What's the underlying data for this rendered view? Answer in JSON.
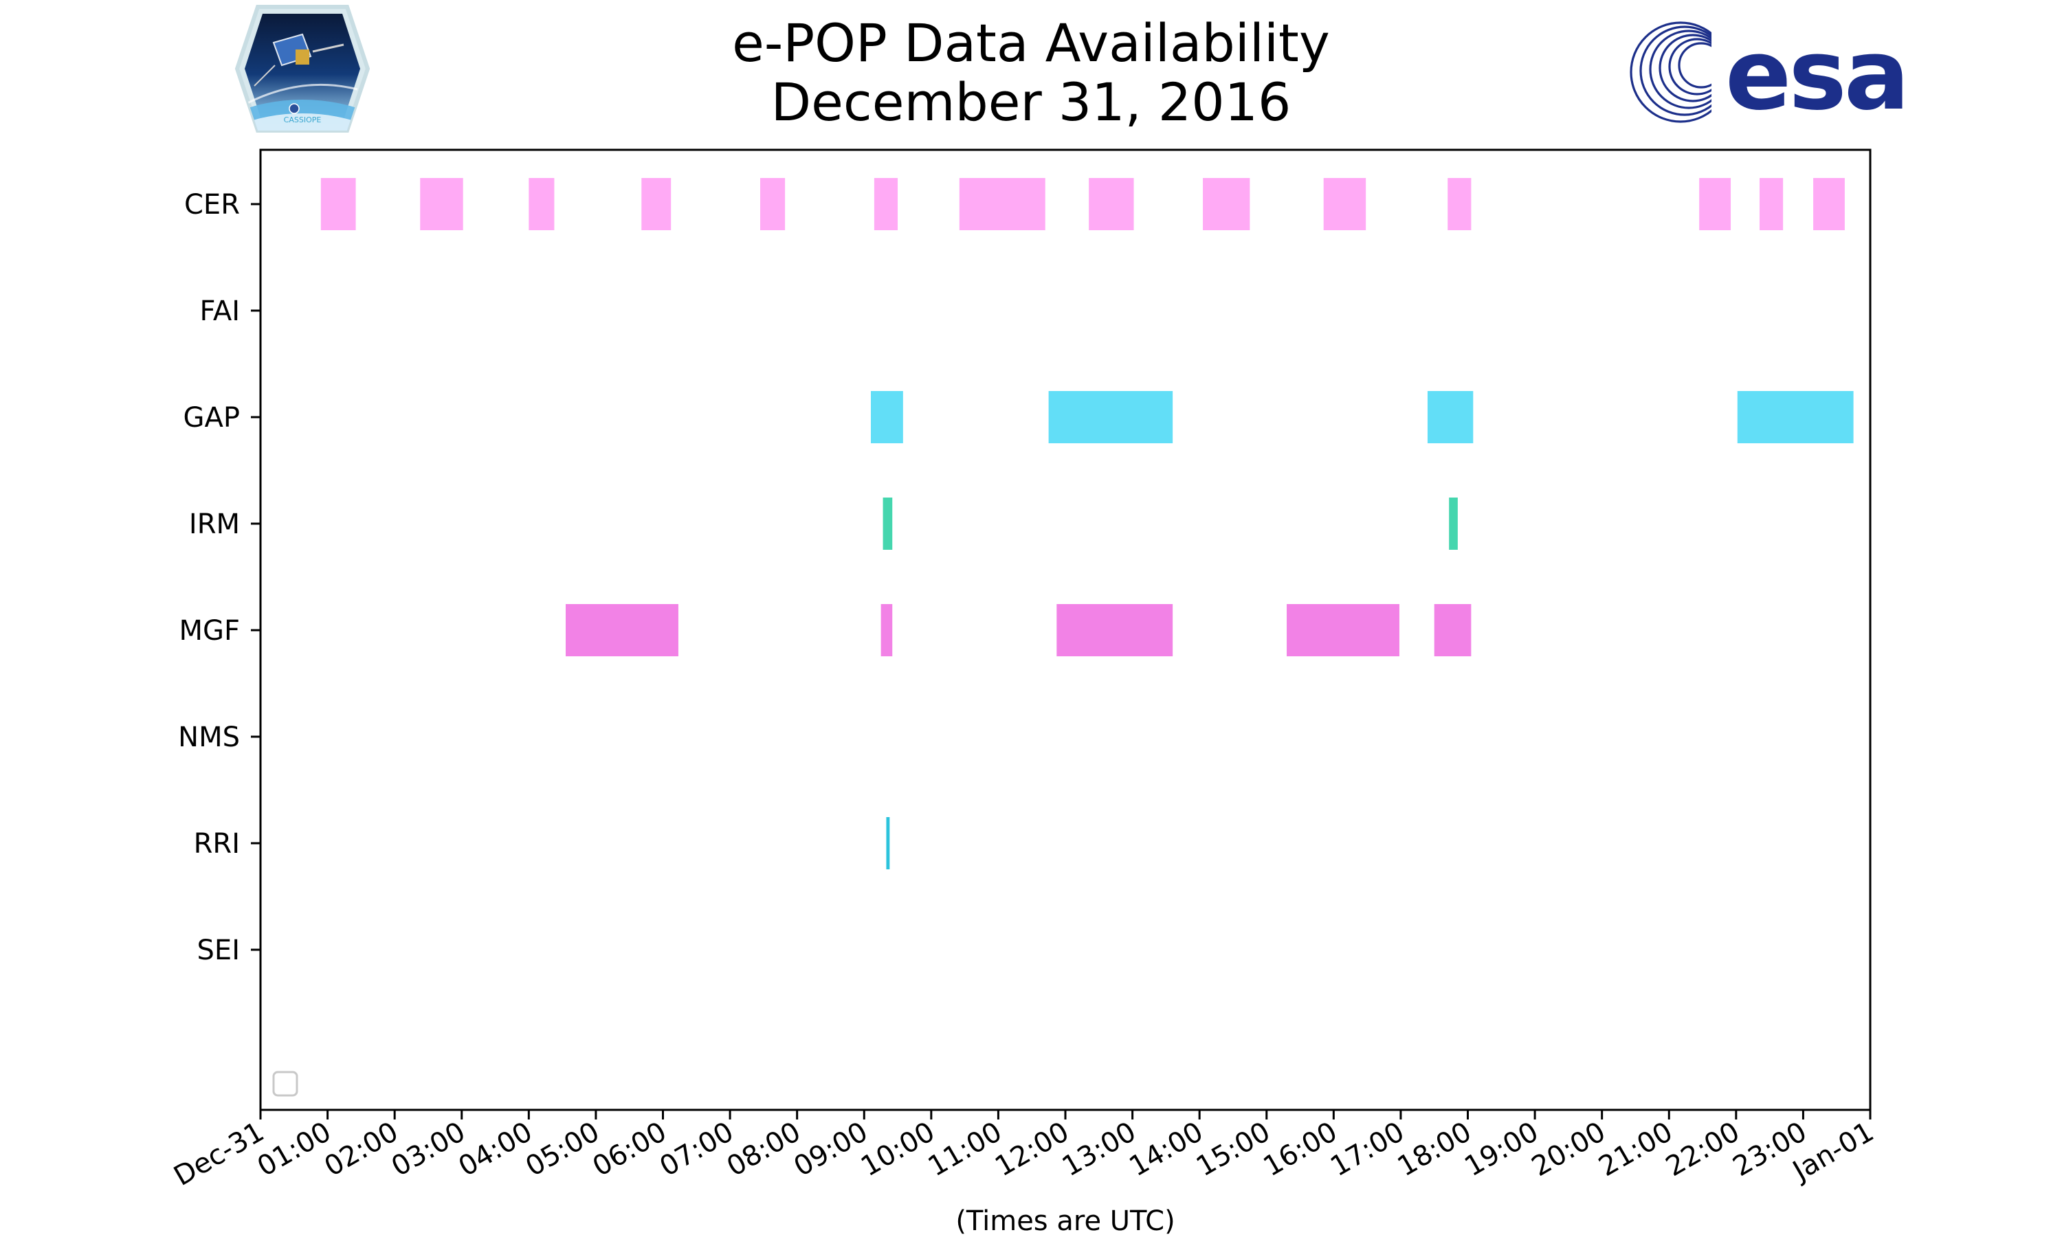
{
  "title": {
    "line1": "e-POP Data Availability",
    "line2": "December 31, 2016"
  },
  "logos": {
    "left": "CASSIOPE",
    "right": "esa"
  },
  "chart_data": {
    "type": "bar",
    "orientation": "horizontal-timeline",
    "xlabel": "(Times are UTC)",
    "xlim_hours": [
      0,
      24
    ],
    "x_ticks": [
      "Dec-31",
      "01:00",
      "02:00",
      "03:00",
      "04:00",
      "05:00",
      "06:00",
      "07:00",
      "08:00",
      "09:00",
      "10:00",
      "11:00",
      "12:00",
      "13:00",
      "14:00",
      "15:00",
      "16:00",
      "17:00",
      "18:00",
      "19:00",
      "20:00",
      "21:00",
      "22:00",
      "23:00",
      "Jan-01"
    ],
    "categories": [
      "CER",
      "FAI",
      "GAP",
      "IRM",
      "MGF",
      "NMS",
      "RRI",
      "SEI"
    ],
    "legend": {
      "placement": "lower-left",
      "entries": []
    },
    "grid": false,
    "series": [
      {
        "name": "CER",
        "color": "#ffaaf5",
        "intervals": [
          [
            0.9,
            1.42
          ],
          [
            2.38,
            3.02
          ],
          [
            4.0,
            4.38
          ],
          [
            5.68,
            6.12
          ],
          [
            7.45,
            7.82
          ],
          [
            9.15,
            9.5
          ],
          [
            10.42,
            11.7
          ],
          [
            12.35,
            13.02
          ],
          [
            14.05,
            14.75
          ],
          [
            15.85,
            16.48
          ],
          [
            17.7,
            18.05
          ],
          [
            21.45,
            21.92
          ],
          [
            22.35,
            22.7
          ],
          [
            23.15,
            23.62
          ]
        ]
      },
      {
        "name": "FAI",
        "color": "#ffaaf5",
        "intervals": []
      },
      {
        "name": "GAP",
        "color": "#62def7",
        "intervals": [
          [
            9.1,
            9.58
          ],
          [
            11.75,
            13.6
          ],
          [
            17.4,
            18.08
          ],
          [
            22.02,
            23.75
          ]
        ]
      },
      {
        "name": "IRM",
        "color": "#45d6ae",
        "intervals": [
          [
            9.28,
            9.42
          ],
          [
            17.72,
            17.85
          ]
        ]
      },
      {
        "name": "MGF",
        "color": "#f282e6",
        "intervals": [
          [
            4.55,
            6.23
          ],
          [
            9.25,
            9.42
          ],
          [
            11.87,
            13.6
          ],
          [
            15.3,
            16.98
          ],
          [
            17.5,
            18.05
          ]
        ]
      },
      {
        "name": "NMS",
        "color": "#cccccc",
        "intervals": []
      },
      {
        "name": "RRI",
        "color": "#2bc3dc",
        "intervals": [
          [
            9.33,
            9.38
          ]
        ]
      },
      {
        "name": "SEI",
        "color": "#cccccc",
        "intervals": []
      }
    ]
  }
}
